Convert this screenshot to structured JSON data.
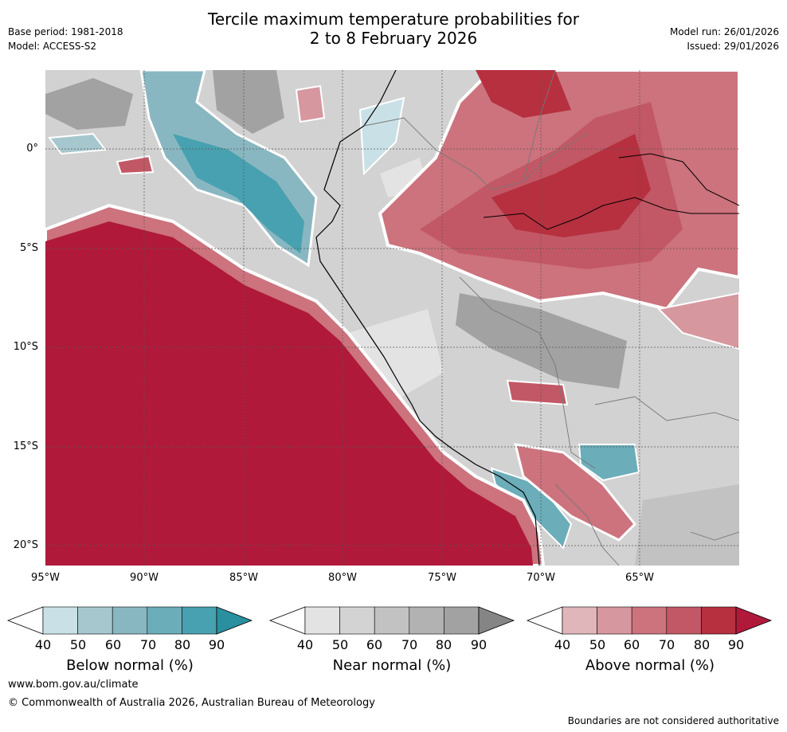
{
  "title_line1": "Tercile maximum temperature probabilities for",
  "title_line2": "2 to 8 February 2026",
  "base_period": "Base period: 1981-2018",
  "model": "Model: ACCESS-S2",
  "model_run": "Model run: 26/01/2026",
  "issued": "Issued: 29/01/2026",
  "lat_labels": [
    "0°",
    "5°S",
    "10°S",
    "15°S",
    "20°S"
  ],
  "lon_labels": [
    "95°W",
    "90°W",
    "85°W",
    "80°W",
    "75°W",
    "70°W",
    "65°W"
  ],
  "colorbars": [
    {
      "title": "Below normal (%)",
      "ticks": [
        "40",
        "50",
        "60",
        "70",
        "80",
        "90"
      ],
      "colors": [
        "#ffffff",
        "#c9e1e6",
        "#a6c7cd",
        "#89b7c1",
        "#6badb9",
        "#48a1b0",
        "#2a8f9e"
      ]
    },
    {
      "title": "Near normal (%)",
      "ticks": [
        "40",
        "50",
        "60",
        "70",
        "80",
        "90"
      ],
      "colors": [
        "#ffffff",
        "#e3e3e3",
        "#d3d3d3",
        "#c2c2c2",
        "#b2b2b2",
        "#a2a2a2",
        "#858585"
      ]
    },
    {
      "title": "Above normal (%)",
      "ticks": [
        "40",
        "50",
        "60",
        "70",
        "80",
        "90"
      ],
      "colors": [
        "#ffffff",
        "#e0b6bb",
        "#d6979f",
        "#cc737d",
        "#c25865",
        "#b6303f",
        "#b0193a"
      ]
    }
  ],
  "website": "www.bom.gov.au/climate",
  "copyright": "© Commonwealth of Australia 2026, Australian Bureau of Meteorology",
  "boundaries_note": "Boundaries are not considered authoritative"
}
